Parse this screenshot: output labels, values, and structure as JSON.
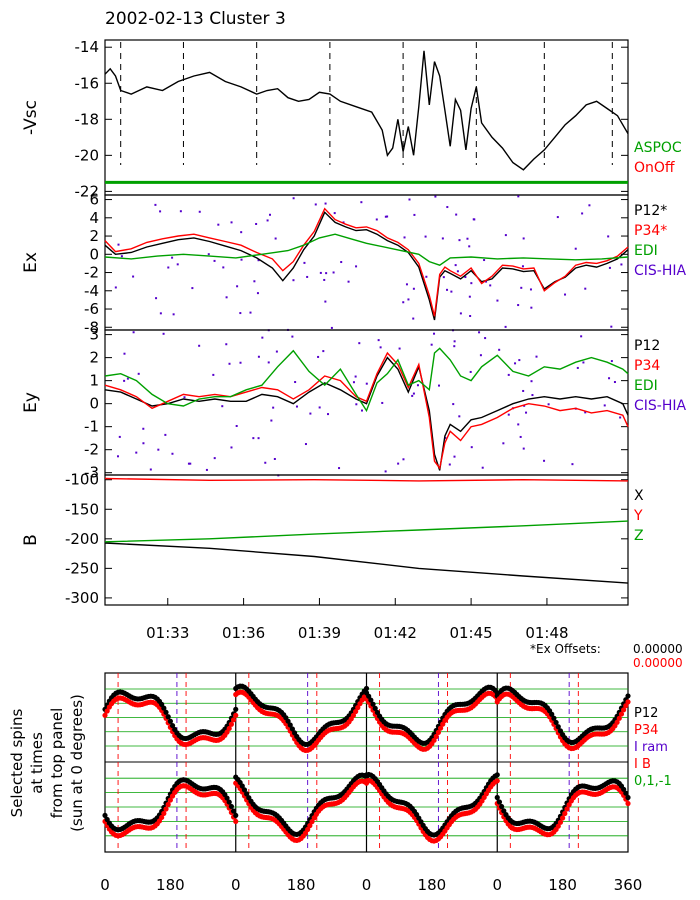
{
  "title": "2002-02-13 Cluster 3",
  "colors": {
    "black": "#000000",
    "red": "#ff0000",
    "green": "#00a000",
    "purple": "#5500cc"
  },
  "time_ticks": [
    "01:33",
    "01:36",
    "01:39",
    "01:42",
    "01:45",
    "01:48"
  ],
  "offsets": {
    "label": "*Ex Offsets:",
    "v1": "0.00000",
    "v2": "0.00000"
  },
  "chart_data": [
    {
      "panel": "vsc",
      "type": "line",
      "ylabel": "-Vsc",
      "ylim": [
        -22.2,
        -13.6
      ],
      "yticks": [
        "-14",
        "-16",
        "-18",
        "-20",
        "-22"
      ],
      "xlim": [
        0,
        1
      ],
      "legend": [
        {
          "text": "ASPOC",
          "color": "green"
        },
        {
          "text": "OnOff",
          "color": "red"
        }
      ],
      "markers": [
        0.03,
        0.15,
        0.29,
        0.43,
        0.57,
        0.71,
        0.84,
        0.97
      ],
      "series": [
        {
          "color": "black",
          "x": [
            0,
            0.01,
            0.02,
            0.03,
            0.05,
            0.08,
            0.11,
            0.14,
            0.17,
            0.2,
            0.23,
            0.26,
            0.29,
            0.31,
            0.33,
            0.35,
            0.37,
            0.39,
            0.41,
            0.43,
            0.45,
            0.48,
            0.51,
            0.53,
            0.54,
            0.55,
            0.56,
            0.57,
            0.58,
            0.59,
            0.6,
            0.61,
            0.62,
            0.63,
            0.64,
            0.65,
            0.66,
            0.67,
            0.68,
            0.69,
            0.7,
            0.71,
            0.72,
            0.74,
            0.76,
            0.78,
            0.8,
            0.82,
            0.84,
            0.86,
            0.88,
            0.9,
            0.92,
            0.94,
            0.96,
            0.98,
            1.0
          ],
          "y": [
            -15.5,
            -15.2,
            -15.6,
            -16.4,
            -16.6,
            -16.2,
            -16.4,
            -15.9,
            -15.6,
            -15.4,
            -15.9,
            -16.2,
            -16.6,
            -16.4,
            -16.3,
            -16.8,
            -17.0,
            -16.9,
            -16.5,
            -16.6,
            -17.0,
            -17.3,
            -17.6,
            -18.6,
            -20.0,
            -19.6,
            -18.0,
            -19.8,
            -18.4,
            -20.0,
            -17.3,
            -14.2,
            -17.2,
            -14.8,
            -15.6,
            -17.5,
            -19.5,
            -16.9,
            -17.5,
            -19.7,
            -17.4,
            -16.2,
            -18.2,
            -19.0,
            -19.6,
            -20.4,
            -20.8,
            -20.2,
            -19.7,
            -19.0,
            -18.3,
            -17.8,
            -17.2,
            -17.0,
            -17.4,
            -17.8,
            -18.8
          ]
        },
        {
          "color": "green",
          "x": [
            0,
            1
          ],
          "y": [
            -21.5,
            -21.5
          ]
        }
      ]
    },
    {
      "panel": "ex",
      "type": "line",
      "ylabel": "Ex",
      "ylim": [
        -8.3,
        6.5
      ],
      "yticks": [
        "6",
        "4",
        "2",
        "0",
        "-2",
        "-4",
        "-6",
        "-8"
      ],
      "xlim": [
        0,
        1
      ],
      "legend": [
        {
          "text": "P12*",
          "color": "black"
        },
        {
          "text": "P34*",
          "color": "red"
        },
        {
          "text": "EDI",
          "color": "green"
        },
        {
          "text": "CIS-HIA",
          "color": "purple"
        }
      ],
      "series": [
        {
          "color": "black",
          "x": [
            0,
            0.02,
            0.05,
            0.08,
            0.11,
            0.14,
            0.17,
            0.2,
            0.23,
            0.26,
            0.29,
            0.32,
            0.34,
            0.36,
            0.38,
            0.4,
            0.42,
            0.44,
            0.46,
            0.48,
            0.5,
            0.52,
            0.54,
            0.56,
            0.58,
            0.6,
            0.62,
            0.63,
            0.64,
            0.65,
            0.66,
            0.68,
            0.7,
            0.72,
            0.74,
            0.76,
            0.78,
            0.8,
            0.82,
            0.84,
            0.86,
            0.88,
            0.9,
            0.92,
            0.94,
            0.96,
            0.98,
            1.0
          ],
          "y": [
            1.0,
            0.0,
            0.2,
            0.8,
            1.2,
            1.6,
            1.8,
            1.4,
            0.9,
            0.4,
            -0.4,
            -1.5,
            -2.9,
            -1.5,
            0.5,
            2.0,
            4.6,
            3.5,
            3.0,
            2.6,
            2.7,
            2.2,
            1.5,
            1.0,
            0.2,
            -1.4,
            -5.0,
            -7.2,
            -2.5,
            -1.8,
            -2.1,
            -2.7,
            -1.8,
            -3.0,
            -2.7,
            -1.5,
            -1.6,
            -1.9,
            -1.8,
            -3.8,
            -3.0,
            -2.5,
            -1.5,
            -1.2,
            -1.4,
            -1.0,
            -0.5,
            0.5
          ]
        },
        {
          "color": "red",
          "x": [
            0,
            0.02,
            0.05,
            0.08,
            0.11,
            0.14,
            0.17,
            0.2,
            0.23,
            0.26,
            0.29,
            0.32,
            0.34,
            0.36,
            0.38,
            0.4,
            0.42,
            0.44,
            0.46,
            0.48,
            0.5,
            0.52,
            0.54,
            0.56,
            0.58,
            0.6,
            0.62,
            0.63,
            0.64,
            0.65,
            0.66,
            0.68,
            0.7,
            0.72,
            0.74,
            0.76,
            0.78,
            0.8,
            0.82,
            0.84,
            0.86,
            0.88,
            0.9,
            0.92,
            0.94,
            0.96,
            0.98,
            1.0
          ],
          "y": [
            1.5,
            0.3,
            0.6,
            1.3,
            1.7,
            2.0,
            2.2,
            1.8,
            1.4,
            1.0,
            0.2,
            -0.5,
            -1.8,
            -0.8,
            1.0,
            2.5,
            5.0,
            3.8,
            3.3,
            2.9,
            3.0,
            2.6,
            1.8,
            1.3,
            0.5,
            -1.0,
            -4.5,
            -6.8,
            -2.2,
            -1.4,
            -1.8,
            -2.4,
            -1.5,
            -3.2,
            -2.4,
            -1.2,
            -1.3,
            -1.6,
            -1.5,
            -4.0,
            -3.1,
            -2.4,
            -1.2,
            -0.9,
            -1.0,
            -0.7,
            -0.2,
            0.8
          ]
        },
        {
          "color": "green",
          "x": [
            0,
            0.05,
            0.1,
            0.15,
            0.2,
            0.25,
            0.3,
            0.35,
            0.38,
            0.41,
            0.44,
            0.47,
            0.5,
            0.55,
            0.6,
            0.62,
            0.64,
            0.66,
            0.7,
            0.75,
            0.8,
            0.85,
            0.9,
            0.95,
            1.0
          ],
          "y": [
            -0.3,
            -0.5,
            -0.2,
            0.0,
            -0.2,
            -0.4,
            0.0,
            0.4,
            1.0,
            1.8,
            2.2,
            1.7,
            1.2,
            0.6,
            0.0,
            -0.8,
            -1.2,
            -0.4,
            -0.3,
            -0.5,
            -0.4,
            -0.5,
            -0.6,
            -0.5,
            -0.3
          ]
        }
      ]
    },
    {
      "panel": "ey",
      "type": "line",
      "ylabel": "Ey",
      "ylim": [
        -3.1,
        3.2
      ],
      "yticks": [
        "3",
        "2",
        "1",
        "0",
        "-1",
        "-2",
        "-3"
      ],
      "xlim": [
        0,
        1
      ],
      "legend": [
        {
          "text": "P12",
          "color": "black"
        },
        {
          "text": "P34",
          "color": "red"
        },
        {
          "text": "EDI",
          "color": "green"
        },
        {
          "text": "CIS-HIA",
          "color": "purple"
        }
      ],
      "series": [
        {
          "color": "black",
          "x": [
            0,
            0.03,
            0.06,
            0.09,
            0.12,
            0.15,
            0.18,
            0.21,
            0.24,
            0.27,
            0.3,
            0.33,
            0.36,
            0.39,
            0.42,
            0.45,
            0.48,
            0.5,
            0.52,
            0.54,
            0.56,
            0.58,
            0.6,
            0.62,
            0.63,
            0.64,
            0.65,
            0.66,
            0.68,
            0.7,
            0.72,
            0.75,
            0.78,
            0.81,
            0.84,
            0.87,
            0.9,
            0.93,
            0.96,
            0.99,
            1.0
          ],
          "y": [
            0.6,
            0.5,
            0.2,
            -0.1,
            0.0,
            0.2,
            0.1,
            0.2,
            0.1,
            0.1,
            0.4,
            0.3,
            0.0,
            0.5,
            0.9,
            0.6,
            0.2,
            0.0,
            1.2,
            2.0,
            1.5,
            0.5,
            1.6,
            -0.3,
            -2.2,
            -2.9,
            -1.4,
            -0.9,
            -1.2,
            -0.7,
            -0.6,
            -0.3,
            0.0,
            0.2,
            0.3,
            0.2,
            0.3,
            0.2,
            0.3,
            0.0,
            -0.5
          ]
        },
        {
          "color": "red",
          "x": [
            0,
            0.03,
            0.06,
            0.09,
            0.12,
            0.15,
            0.18,
            0.21,
            0.24,
            0.27,
            0.3,
            0.33,
            0.36,
            0.39,
            0.42,
            0.45,
            0.48,
            0.5,
            0.52,
            0.54,
            0.56,
            0.58,
            0.6,
            0.62,
            0.63,
            0.64,
            0.65,
            0.66,
            0.68,
            0.7,
            0.72,
            0.75,
            0.78,
            0.81,
            0.84,
            0.87,
            0.9,
            0.93,
            0.96,
            0.99,
            1.0
          ],
          "y": [
            0.8,
            0.6,
            0.3,
            -0.2,
            0.1,
            0.4,
            0.3,
            0.4,
            0.3,
            0.5,
            0.7,
            0.6,
            0.2,
            0.6,
            1.2,
            1.0,
            0.3,
            0.1,
            1.3,
            2.2,
            1.7,
            0.7,
            1.7,
            -0.6,
            -2.5,
            -2.8,
            -1.7,
            -1.2,
            -1.6,
            -1.0,
            -0.9,
            -0.6,
            -0.2,
            0.0,
            -0.1,
            -0.3,
            -0.2,
            -0.4,
            -0.3,
            -0.5,
            -1.0
          ]
        },
        {
          "color": "green",
          "x": [
            0,
            0.03,
            0.06,
            0.09,
            0.12,
            0.15,
            0.18,
            0.21,
            0.24,
            0.27,
            0.3,
            0.33,
            0.36,
            0.39,
            0.42,
            0.45,
            0.48,
            0.5,
            0.52,
            0.54,
            0.56,
            0.58,
            0.6,
            0.62,
            0.63,
            0.64,
            0.66,
            0.68,
            0.7,
            0.72,
            0.75,
            0.78,
            0.81,
            0.84,
            0.87,
            0.9,
            0.93,
            0.96,
            0.99,
            1.0
          ],
          "y": [
            1.2,
            1.3,
            1.0,
            0.4,
            0.0,
            -0.1,
            0.2,
            0.3,
            0.3,
            0.6,
            0.8,
            1.6,
            2.3,
            1.4,
            0.8,
            1.5,
            0.4,
            -0.3,
            0.9,
            1.3,
            1.9,
            0.8,
            1.0,
            0.6,
            2.2,
            2.4,
            1.9,
            1.2,
            1.0,
            1.6,
            2.1,
            1.4,
            1.2,
            1.6,
            1.5,
            1.8,
            2.0,
            1.8,
            1.5,
            1.3
          ]
        }
      ]
    },
    {
      "panel": "b",
      "type": "line",
      "ylabel": "B",
      "ylim": [
        -312,
        -92
      ],
      "yticks": [
        "-100",
        "-150",
        "-200",
        "-250",
        "-300"
      ],
      "xlim": [
        0,
        1
      ],
      "legend": [
        {
          "text": "X",
          "color": "black"
        },
        {
          "text": "Y",
          "color": "red"
        },
        {
          "text": "Z",
          "color": "green"
        }
      ],
      "series": [
        {
          "color": "black",
          "x": [
            0,
            0.2,
            0.4,
            0.6,
            0.8,
            1.0
          ],
          "y": [
            -207,
            -216,
            -230,
            -250,
            -263,
            -275
          ]
        },
        {
          "color": "red",
          "x": [
            0,
            0.2,
            0.4,
            0.6,
            0.8,
            1.0
          ],
          "y": [
            -98,
            -101,
            -100,
            -102,
            -100,
            -102
          ]
        },
        {
          "color": "green",
          "x": [
            0,
            0.2,
            0.4,
            0.6,
            0.8,
            1.0
          ],
          "y": [
            -205,
            -200,
            -192,
            -185,
            -178,
            -170
          ]
        }
      ]
    },
    {
      "panel": "spins",
      "type": "scatter",
      "ylabel_lines": [
        "Selected spins",
        "at times",
        "from top panel",
        "(sun at 0 degrees)"
      ],
      "xtick_labels": [
        "0",
        "180",
        "0",
        "180",
        "0",
        "180",
        "0",
        "180",
        "360"
      ],
      "legend": [
        {
          "text": "P12",
          "color": "black"
        },
        {
          "text": "P34",
          "color": "red"
        },
        {
          "text": "I ram",
          "color": "purple"
        },
        {
          "text": "I B",
          "color": "red"
        },
        {
          "text": "0,1,-1",
          "color": "green"
        }
      ]
    }
  ]
}
